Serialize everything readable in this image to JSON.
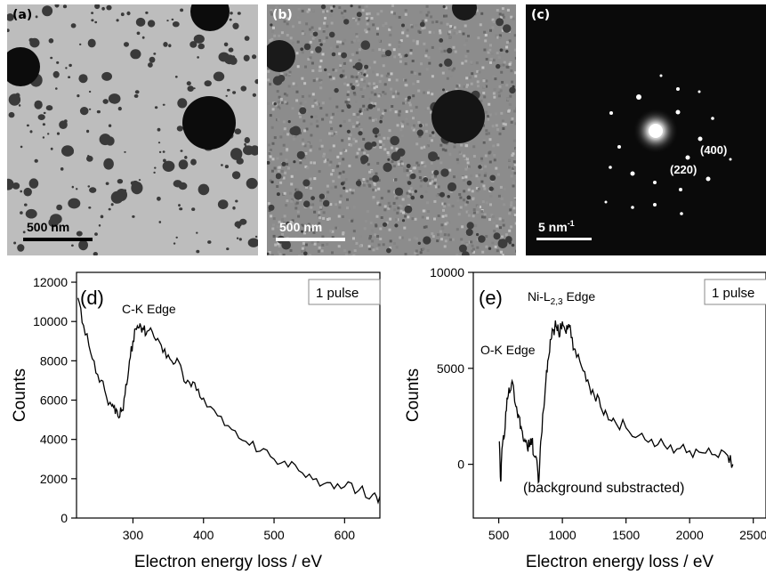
{
  "micrographs": {
    "a": {
      "label": "(a)",
      "scalebar": "500 nm"
    },
    "b": {
      "label": "(b)",
      "scalebar": "500 nm"
    },
    "c": {
      "label": "(c)",
      "scalebar_base": "5 nm",
      "scalebar_sup": "-1",
      "spot_220": "(220)",
      "spot_400": "(400)"
    }
  },
  "chart_data": [
    {
      "type": "line",
      "panel_label": "(d)",
      "legend": "1 pulse",
      "annotations": [
        "C-K Edge"
      ],
      "xlabel": "Electron energy loss / eV",
      "ylabel": "Counts",
      "xlim": [
        220,
        650
      ],
      "ylim": [
        0,
        12500
      ],
      "xticks": [
        300,
        400,
        500,
        600
      ],
      "yticks": [
        0,
        2000,
        4000,
        6000,
        8000,
        10000,
        12000
      ],
      "series": [
        {
          "x": [
            222,
            230,
            240,
            250,
            260,
            270,
            275,
            280,
            285,
            290,
            295,
            300,
            305,
            310,
            315,
            320,
            330,
            340,
            350,
            360,
            370,
            380,
            390,
            400,
            420,
            440,
            460,
            480,
            500,
            520,
            540,
            560,
            580,
            600,
            620,
            640,
            650
          ],
          "y": [
            11200,
            9800,
            8400,
            7300,
            6500,
            5700,
            5300,
            5100,
            5500,
            6800,
            8000,
            9000,
            9600,
            9900,
            9600,
            9500,
            9200,
            8800,
            8300,
            7900,
            7400,
            6900,
            6500,
            6100,
            5200,
            4500,
            3900,
            3400,
            3000,
            2600,
            2300,
            2000,
            1800,
            1600,
            1400,
            1200,
            1100
          ]
        }
      ]
    },
    {
      "type": "line",
      "panel_label": "(e)",
      "legend": "1 pulse",
      "annotations": [
        "Ni-L2,3 Edge",
        "O-K Edge",
        "(background substracted)"
      ],
      "annotation_ni_base": "Ni-L",
      "annotation_ni_sub": "2,3",
      "annotation_ni_rest": " Edge",
      "xlabel": "Electron energy loss / eV",
      "ylabel": "Counts",
      "xlim": [
        300,
        2600
      ],
      "ylim": [
        -2800,
        10000
      ],
      "xticks": [
        500,
        1000,
        1500,
        2000,
        2500
      ],
      "yticks": [
        0,
        5000,
        10000
      ],
      "series": [
        {
          "x": [
            505,
            515,
            525,
            540,
            560,
            580,
            600,
            620,
            640,
            660,
            680,
            700,
            720,
            740,
            760,
            780,
            800,
            815,
            830,
            850,
            870,
            890,
            910,
            930,
            950,
            970,
            990,
            1010,
            1030,
            1050,
            1070,
            1100,
            1150,
            1200,
            1250,
            1300,
            1350,
            1400,
            1500,
            1600,
            1700,
            1800,
            1900,
            2000,
            2100,
            2200,
            2300,
            2340
          ],
          "y": [
            1200,
            -900,
            800,
            1300,
            2800,
            4000,
            4200,
            3700,
            3000,
            2500,
            1800,
            1200,
            1100,
            900,
            1300,
            400,
            200,
            -900,
            1200,
            2800,
            4300,
            5500,
            6500,
            7000,
            7200,
            6900,
            7100,
            7200,
            6800,
            7300,
            6600,
            6000,
            5100,
            4400,
            3600,
            3000,
            2600,
            2400,
            1900,
            1500,
            1300,
            1000,
            800,
            700,
            600,
            500,
            450,
            0
          ]
        }
      ]
    }
  ]
}
